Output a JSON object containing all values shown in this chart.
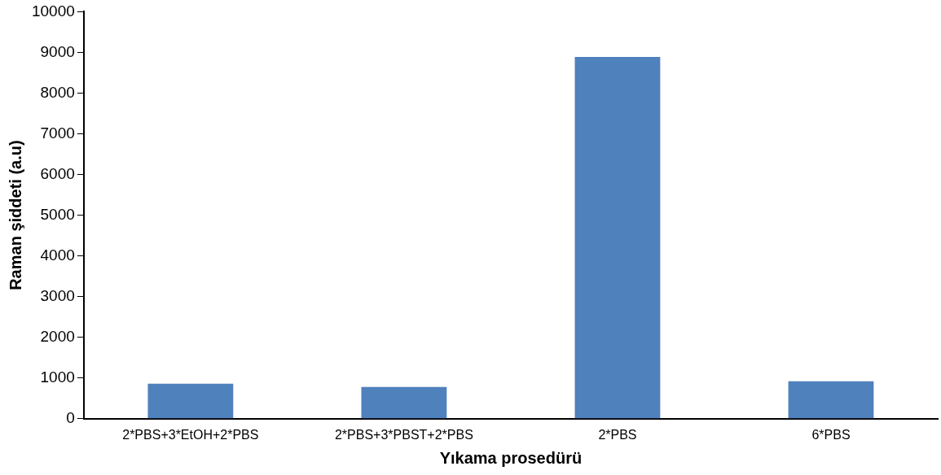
{
  "chart_data": {
    "type": "bar",
    "xlabel": "Yıkama prosedürü",
    "ylabel": "Raman şiddeti (a.u)",
    "categories": [
      "2*PBS+3*EtOH+2*PBS",
      "2*PBS+3*PBST+2*PBS",
      "2*PBS",
      "6*PBS"
    ],
    "values": [
      860,
      780,
      8890,
      920
    ],
    "color": "#4f81bd",
    "ylim": [
      0,
      10000
    ],
    "yticks": [
      0,
      1000,
      2000,
      3000,
      4000,
      5000,
      6000,
      7000,
      8000,
      9000,
      10000
    ],
    "grid": false,
    "legend": false
  }
}
